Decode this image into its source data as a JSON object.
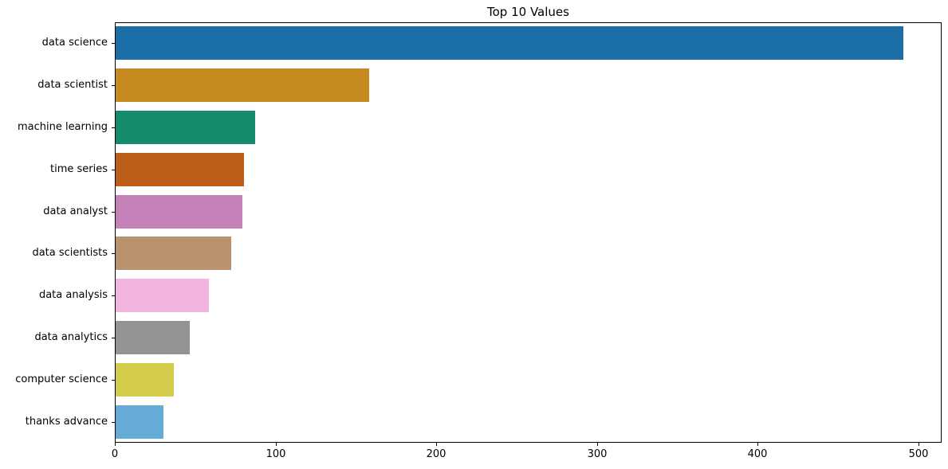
{
  "chart_data": {
    "type": "bar",
    "orientation": "horizontal",
    "title": "Top 10 Values",
    "categories": [
      "data science",
      "data scientist",
      "machine learning",
      "time series",
      "data analyst",
      "data scientists",
      "data analysis",
      "data analytics",
      "computer science",
      "thanks advance"
    ],
    "values": [
      490,
      158,
      87,
      80,
      79,
      72,
      58,
      46,
      36,
      30
    ],
    "bar_colors": [
      "#1b6ea6",
      "#c5891f",
      "#158d6c",
      "#bd5f1b",
      "#c482b8",
      "#bb926e",
      "#f2b5df",
      "#949494",
      "#d2cc4a",
      "#64acd6"
    ],
    "xlabel": "",
    "ylabel": "",
    "xlim": [
      0,
      514.5
    ],
    "x_ticks": [
      0,
      100,
      200,
      300,
      400,
      500
    ],
    "grid": false,
    "legend_position": "none"
  },
  "colors": {
    "spine": "#000000",
    "text": "#000000",
    "background": "#ffffff"
  }
}
